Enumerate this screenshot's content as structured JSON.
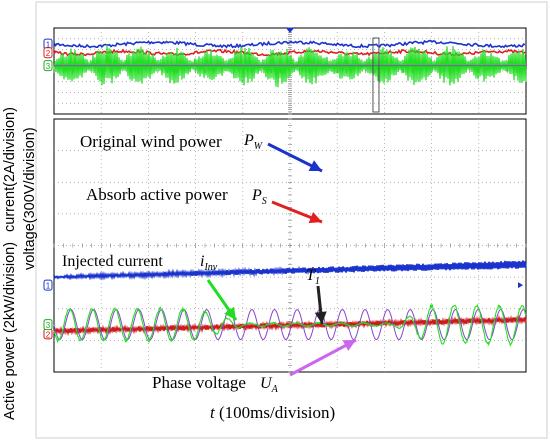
{
  "chart_data": {
    "type": "line",
    "xlabel_var": "t",
    "xlabel_unit": "(100ms/division)",
    "ylabels": {
      "outer": "Active power (2kW/division)",
      "inner_top": "current(2A/division)",
      "inner_bottom": "voltage(300V/division)"
    },
    "grid": true,
    "divisions": {
      "x": 10,
      "y": 8
    },
    "overview": {
      "window_marker_division": 6.8,
      "channel_markers": [
        "1",
        "2",
        "3"
      ],
      "series": [
        {
          "channel": "1",
          "color": "#1a33cc",
          "level_div": 1.5
        },
        {
          "channel": "2",
          "color": "#e02020",
          "level_div": 2.3
        },
        {
          "channel": "3",
          "color": "#22dd22",
          "level_div": 3.5
        }
      ]
    },
    "main": {
      "channel_markers": [
        "1",
        "2",
        "3"
      ],
      "series": [
        {
          "name": "Original wind power",
          "symbol": "P",
          "subscript": "W",
          "color": "#1a33cc",
          "start_div": 5.0,
          "end_div": 4.6
        },
        {
          "name": "Absorb active power",
          "symbol": "P",
          "subscript": "S",
          "color": "#cc1a1a",
          "start_div": 6.7,
          "end_div": 6.35
        },
        {
          "name": "Injected current",
          "symbol": "i",
          "subscript": "Inv",
          "color": "#22dd22",
          "amplitude_div": [
            0.5,
            0.05,
            0.6
          ]
        },
        {
          "name": "Phase voltage",
          "symbol": "U",
          "subscript": "A",
          "color": "#8844cc",
          "amplitude_div": 0.5
        }
      ],
      "annotations": [
        {
          "text": "Original wind power",
          "symbol": "P",
          "subscript": "W"
        },
        {
          "text": "Absorb active power",
          "symbol": "P",
          "subscript": "S"
        },
        {
          "text": "Injected current",
          "symbol": "i",
          "subscript": "Inv"
        },
        {
          "text": "",
          "symbol": "T",
          "subscript": "1"
        },
        {
          "text": "Phase voltage",
          "symbol": "U",
          "subscript": "A"
        }
      ]
    }
  }
}
